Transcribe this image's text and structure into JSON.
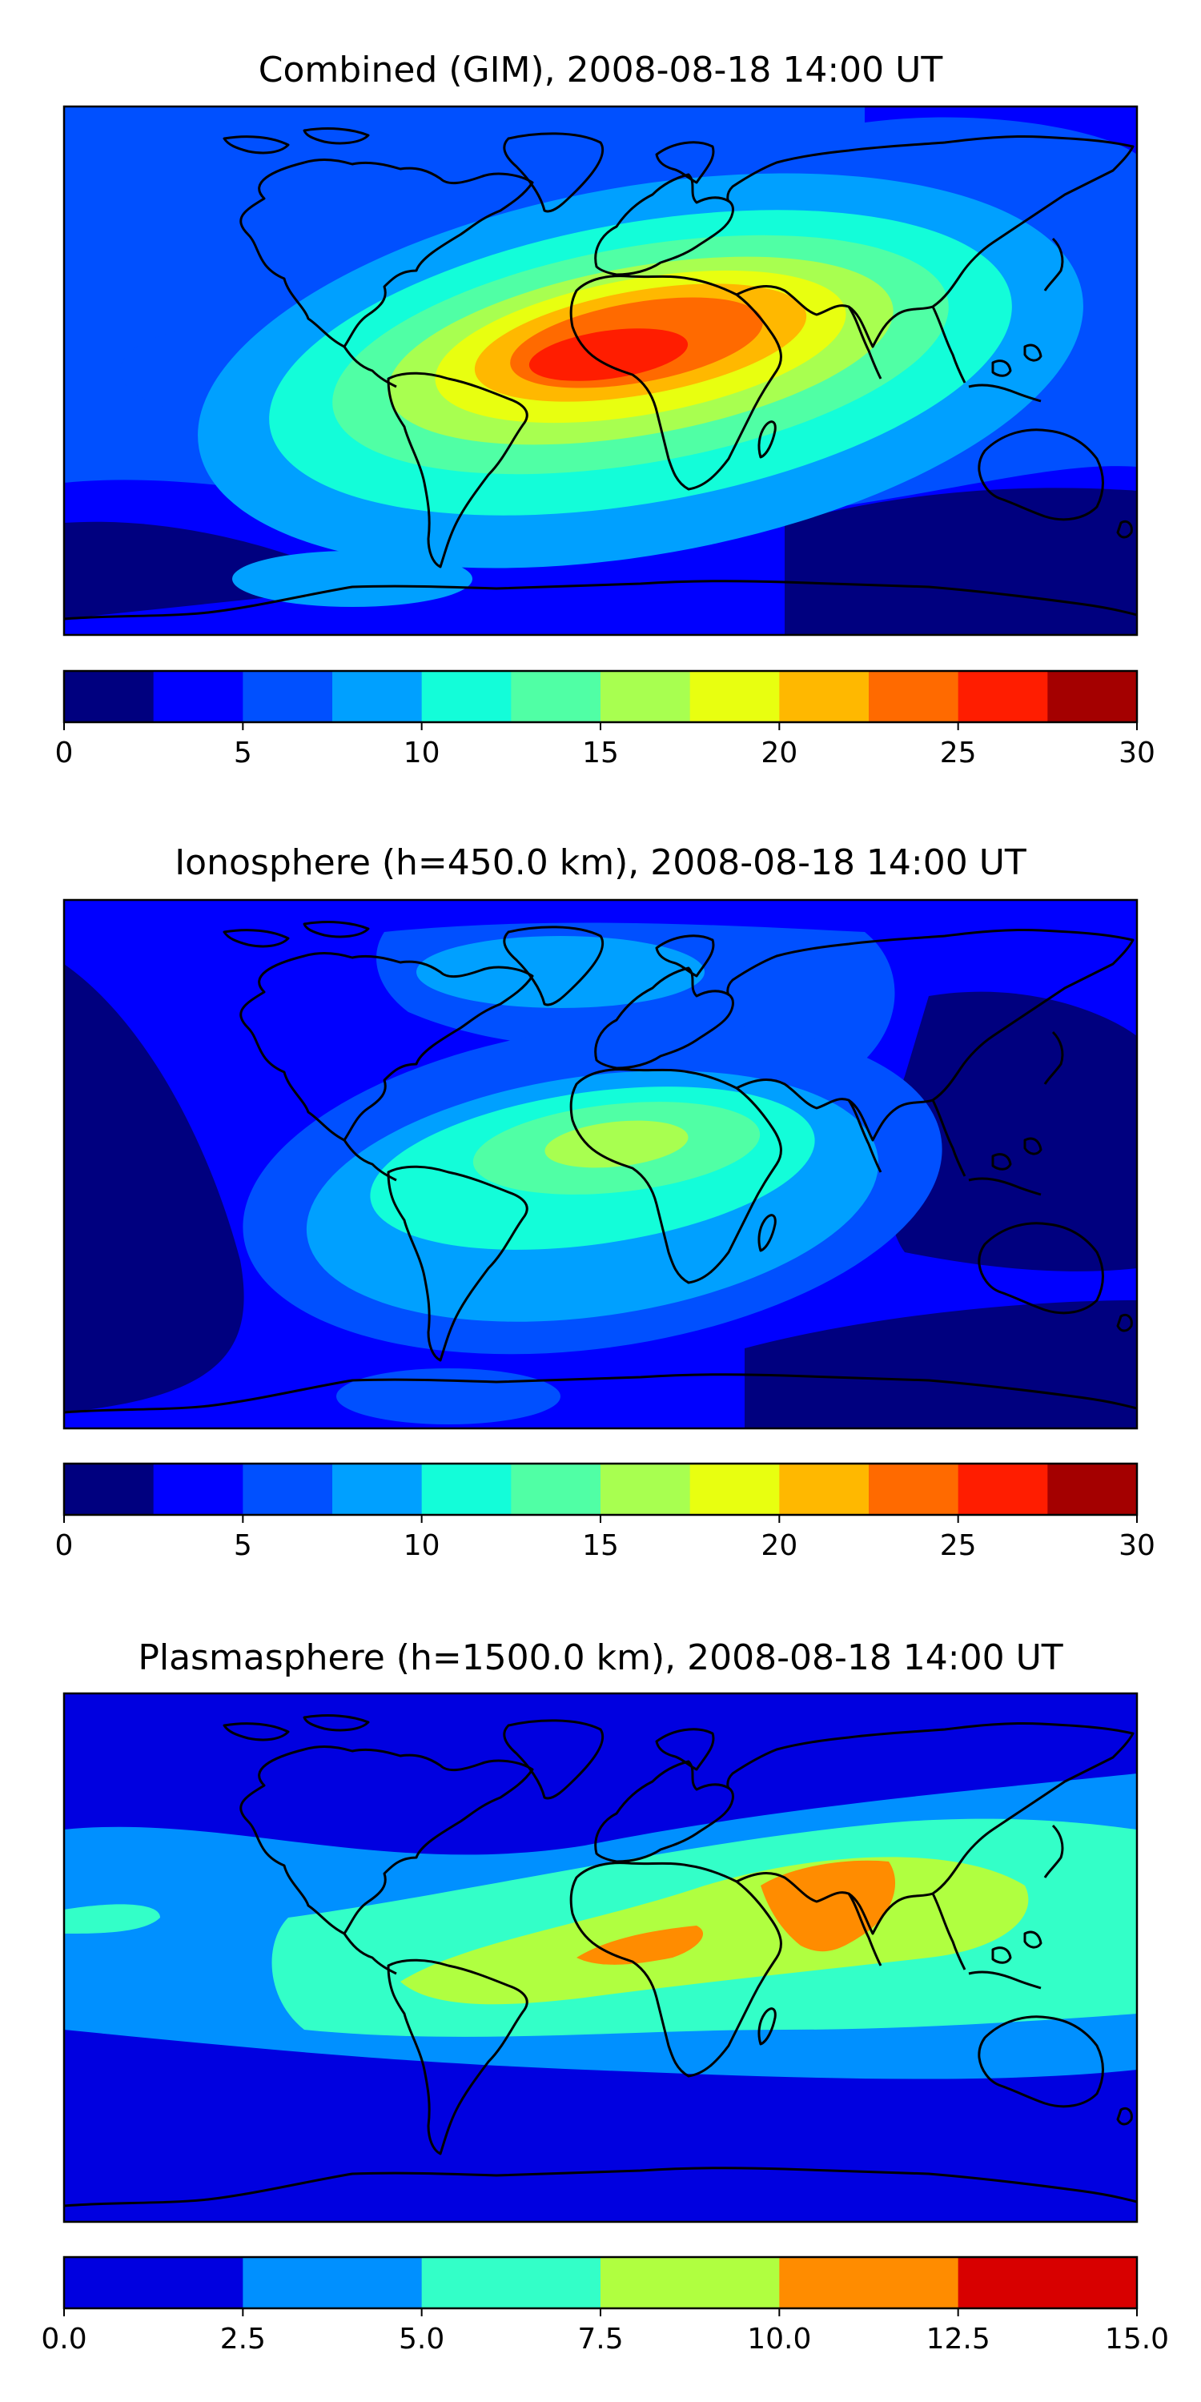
{
  "chart_data": [
    {
      "type": "heatmap",
      "title": "Combined (GIM), 2008-08-18 14:00 UT",
      "colorbar": {
        "ticks": [
          "0",
          "5",
          "10",
          "15",
          "20",
          "25",
          "30"
        ],
        "range": [
          0,
          30
        ],
        "levels": [
          0,
          2.5,
          5,
          7.5,
          10,
          12.5,
          15,
          17.5,
          20,
          22.5,
          25,
          27.5,
          30
        ],
        "colors": [
          "#00007f",
          "#0000ff",
          "#0050ff",
          "#00a0ff",
          "#13fdd9",
          "#50ffa5",
          "#a8ff50",
          "#e8ff10",
          "#ffb800",
          "#ff6a00",
          "#ff1d00",
          "#a40000"
        ]
      }
    },
    {
      "type": "heatmap",
      "title": "Ionosphere  (h=450.0 km), 2008-08-18 14:00 UT",
      "colorbar": {
        "ticks": [
          "0",
          "5",
          "10",
          "15",
          "20",
          "25",
          "30"
        ],
        "range": [
          0,
          30
        ],
        "levels": [
          0,
          2.5,
          5,
          7.5,
          10,
          12.5,
          15,
          17.5,
          20,
          22.5,
          25,
          27.5,
          30
        ],
        "colors": [
          "#00007f",
          "#0000ff",
          "#0050ff",
          "#00a0ff",
          "#13fdd9",
          "#50ffa5",
          "#a8ff50",
          "#e8ff10",
          "#ffb800",
          "#ff6a00",
          "#ff1d00",
          "#a40000"
        ]
      }
    },
    {
      "type": "heatmap",
      "title": "Plasmasphere (h=1500.0 km), 2008-08-18 14:00 UT",
      "colorbar": {
        "ticks": [
          "0.0",
          "2.5",
          "5.0",
          "7.5",
          "10.0",
          "12.5",
          "15.0"
        ],
        "range": [
          0,
          15
        ],
        "levels": [
          0,
          2.5,
          5,
          7.5,
          10,
          12.5,
          15
        ],
        "colors": [
          "#0000e0",
          "#0090ff",
          "#33ffc8",
          "#b0ff40",
          "#ff8c00",
          "#d80000"
        ]
      }
    }
  ]
}
